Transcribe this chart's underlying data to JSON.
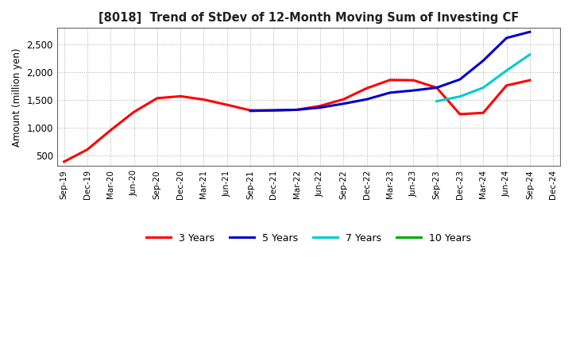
{
  "title": "[8018]  Trend of StDev of 12-Month Moving Sum of Investing CF",
  "ylabel": "Amount (million yen)",
  "background_color": "#ffffff",
  "grid_color": "#999999",
  "x_labels": [
    "Sep-19",
    "Dec-19",
    "Mar-20",
    "Jun-20",
    "Sep-20",
    "Dec-20",
    "Mar-21",
    "Jun-21",
    "Sep-21",
    "Dec-21",
    "Mar-22",
    "Jun-22",
    "Sep-22",
    "Dec-22",
    "Mar-23",
    "Jun-23",
    "Sep-23",
    "Dec-23",
    "Mar-24",
    "Jun-24",
    "Sep-24",
    "Dec-24"
  ],
  "series": {
    "3 Years": {
      "color": "#ff0000",
      "data_x": [
        0,
        1,
        2,
        3,
        4,
        5,
        6,
        7,
        8,
        9,
        10,
        11,
        12,
        13,
        14,
        15,
        16,
        17,
        18,
        19,
        20
      ],
      "data_y": [
        380,
        600,
        950,
        1280,
        1530,
        1565,
        1505,
        1410,
        1310,
        1310,
        1320,
        1390,
        1510,
        1710,
        1860,
        1855,
        1720,
        1240,
        1265,
        1760,
        1855
      ]
    },
    "5 Years": {
      "color": "#0000cc",
      "data_x": [
        8,
        9,
        10,
        11,
        12,
        13,
        14,
        15,
        16,
        17,
        18,
        19,
        20
      ],
      "data_y": [
        1300,
        1310,
        1320,
        1360,
        1430,
        1510,
        1630,
        1670,
        1720,
        1870,
        2210,
        2620,
        2730
      ]
    },
    "7 Years": {
      "color": "#00cccc",
      "data_x": [
        16,
        17,
        18,
        19,
        20
      ],
      "data_y": [
        1475,
        1560,
        1720,
        2030,
        2320
      ]
    },
    "10 Years": {
      "color": "#00aa00",
      "data_x": [],
      "data_y": []
    }
  },
  "ylim": [
    300,
    2800
  ],
  "yticks": [
    500,
    1000,
    1500,
    2000,
    2500
  ],
  "legend_entries": [
    "3 Years",
    "5 Years",
    "7 Years",
    "10 Years"
  ],
  "legend_colors": [
    "#ff0000",
    "#0000cc",
    "#00cccc",
    "#00aa00"
  ]
}
